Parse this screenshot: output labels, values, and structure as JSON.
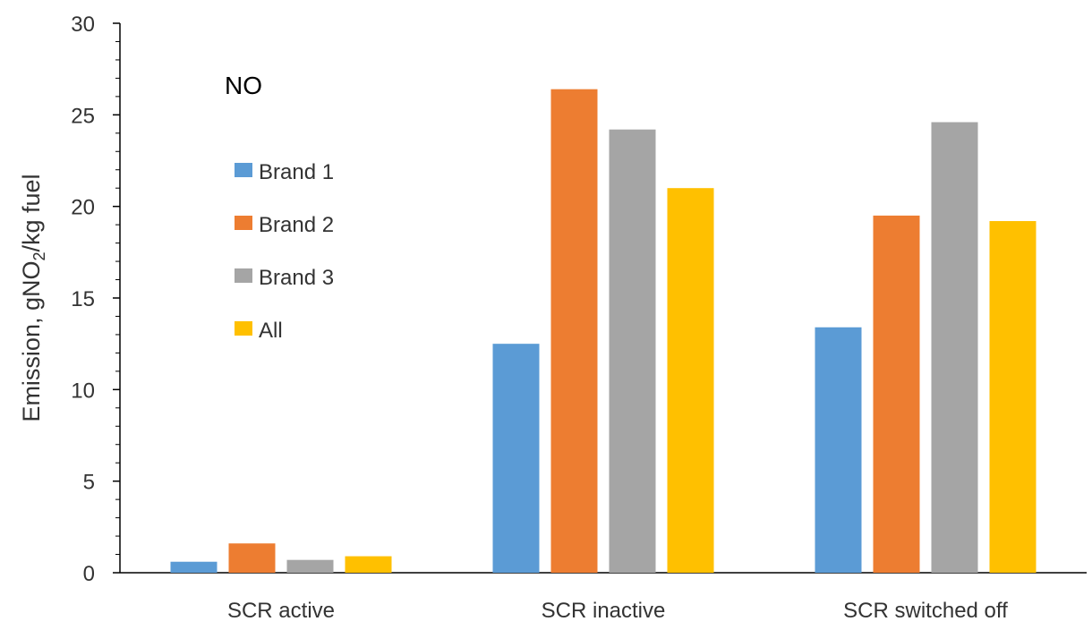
{
  "chart_data": {
    "type": "bar",
    "title": "NO",
    "xlabel": "",
    "ylabel_main": "Emission, gNO",
    "ylabel_sub": "2",
    "ylabel_tail": "/kg fuel",
    "ylim": [
      0,
      30
    ],
    "yticks": [
      0,
      5,
      10,
      15,
      20,
      25,
      30
    ],
    "categories": [
      "SCR active",
      "SCR inactive",
      "SCR switched off"
    ],
    "series": [
      {
        "name": "Brand 1",
        "color": "#5B9BD5",
        "values": [
          0.6,
          12.5,
          13.4
        ]
      },
      {
        "name": "Brand 2",
        "color": "#ED7D31",
        "values": [
          1.6,
          26.4,
          19.5
        ]
      },
      {
        "name": "Brand 3",
        "color": "#A5A5A5",
        "values": [
          0.7,
          24.2,
          24.6
        ]
      },
      {
        "name": "All",
        "color": "#FFC000",
        "values": [
          0.9,
          21.0,
          19.2
        ]
      }
    ],
    "grid": false,
    "legend_position": "top-left inside"
  }
}
